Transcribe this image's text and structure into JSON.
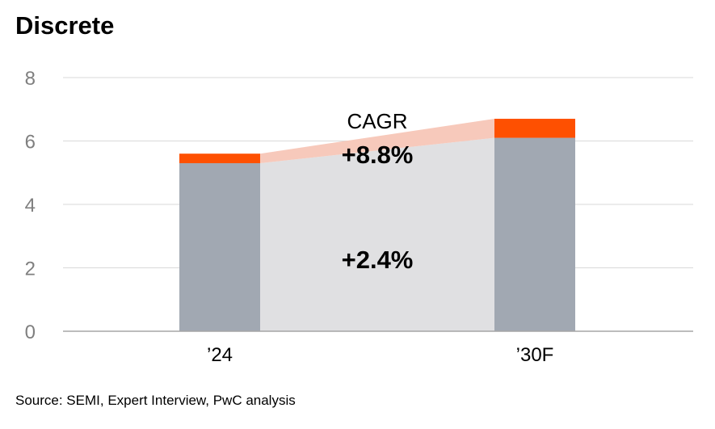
{
  "title": "Discrete",
  "source": "Source: SEMI, Expert Interview, PwC analysis",
  "chart_data": {
    "type": "bar",
    "stacked": true,
    "categories": [
      "’24",
      "’30F"
    ],
    "series": [
      {
        "values": [
          5.3,
          6.1
        ]
      },
      {
        "values": [
          0.3,
          0.6
        ]
      }
    ],
    "ylim": [
      0,
      8
    ],
    "yticks": [
      0,
      2,
      4,
      6,
      8
    ],
    "grid": true,
    "annotations": {
      "cagr_label": "CAGR",
      "top_cagr": "+8.8%",
      "bottom_cagr": "+2.4%"
    },
    "colors": {
      "base": "#a1a8b2",
      "top": "#fe5001",
      "base_band": "#e0e0e2",
      "top_band": "#f7c9bb",
      "grid": "#d9d9d9",
      "axis": "#a6a6a6",
      "tick_label": "#7f7f7f"
    }
  }
}
